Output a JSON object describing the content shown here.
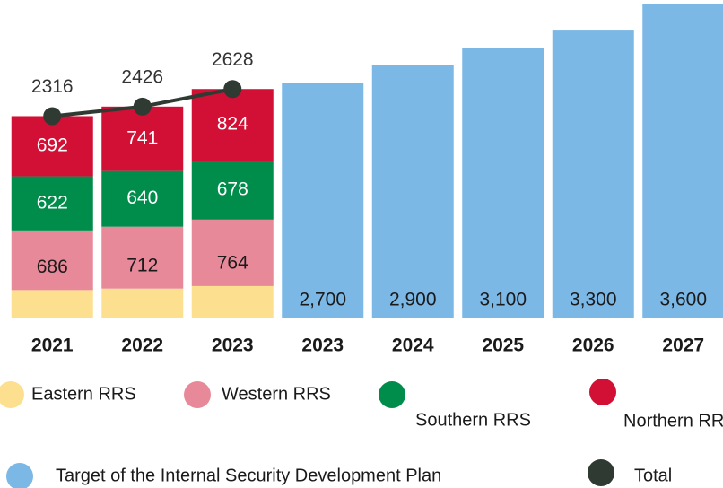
{
  "chart_data": {
    "type": "bar",
    "stacked": true,
    "categories": [
      "2021",
      "2022",
      "2023",
      "2023",
      "2024",
      "2025",
      "2026",
      "2027"
    ],
    "series": [
      {
        "name": "Eastern RRS",
        "color": "#fde08f",
        "values": [
          316,
          333,
          362,
          null,
          null,
          null,
          null,
          null
        ]
      },
      {
        "name": "Western RRS",
        "color": "#e8899a",
        "values": [
          686,
          712,
          764,
          null,
          null,
          null,
          null,
          null
        ]
      },
      {
        "name": "Southern RRS",
        "color": "#008c4a",
        "values": [
          622,
          640,
          678,
          null,
          null,
          null,
          null,
          null
        ]
      },
      {
        "name": "Northern RRS",
        "color": "#d20f34",
        "values": [
          692,
          741,
          824,
          null,
          null,
          null,
          null,
          null
        ]
      },
      {
        "name": "Target of the Internal Security Development Plan",
        "color": "#7cb8e6",
        "stack": false,
        "values": [
          null,
          null,
          null,
          2700,
          2900,
          3100,
          3300,
          3600
        ],
        "value_labels": [
          null,
          null,
          null,
          "2,700",
          "2,900",
          "3,100",
          "3,300",
          "3,600"
        ]
      },
      {
        "name": "Total",
        "color": "#2f3a33",
        "type": "line",
        "values": [
          2316,
          2426,
          2628,
          null,
          null,
          null,
          null,
          null
        ]
      }
    ]
  }
}
